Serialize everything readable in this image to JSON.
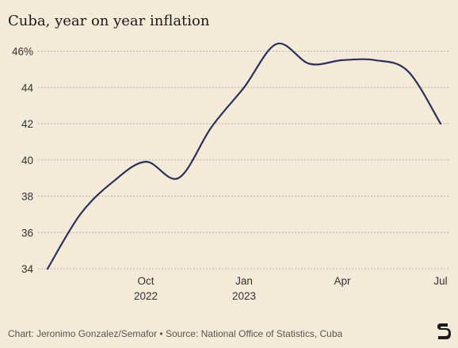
{
  "title": "Cuba, year on year inflation",
  "footer": "Chart: Jeronimo Gonzalez/Semafor • Source: National Office of Statistics, Cuba",
  "logo_letter": "S",
  "colors": {
    "background": "#f4ead8",
    "line": "#2b2f5c",
    "grid": "#b9b2a6"
  },
  "chart_data": {
    "type": "line",
    "title": "Cuba, year on year inflation",
    "xlabel": "",
    "ylabel": "",
    "x_ticks": [
      "Oct\n2022",
      "Jan\n2023",
      "Apr",
      "Jul"
    ],
    "y_ticks": [
      "46%",
      "44",
      "42",
      "40",
      "38",
      "36",
      "34"
    ],
    "ylim": [
      34,
      46.5
    ],
    "grid": true,
    "series": [
      {
        "x": [
          "2022-07",
          "2022-08",
          "2022-09",
          "2022-10",
          "2022-11",
          "2022-12",
          "2023-01",
          "2023-02",
          "2023-03",
          "2023-04",
          "2023-05",
          "2023-06",
          "2023-07"
        ],
        "y": [
          34.0,
          37.0,
          38.8,
          39.9,
          39.0,
          41.8,
          44.0,
          46.4,
          45.3,
          45.5,
          45.5,
          44.9,
          42.0
        ]
      }
    ]
  }
}
